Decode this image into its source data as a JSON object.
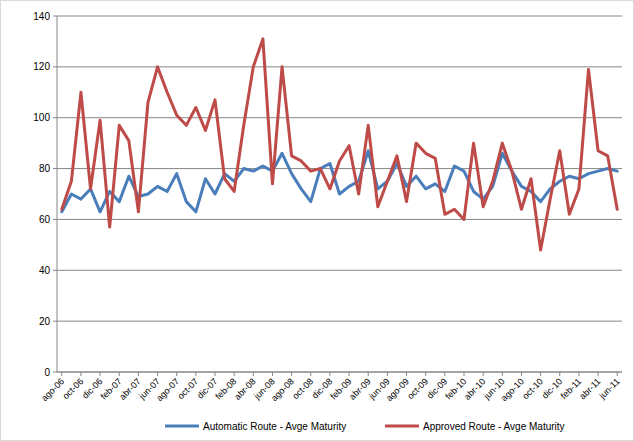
{
  "chart_data": {
    "type": "line",
    "categories": [
      "ago-06",
      null,
      "oct-06",
      null,
      "dic-06",
      null,
      "feb-07",
      null,
      "abr-07",
      null,
      "jun-07",
      null,
      "ago-07",
      null,
      "oct-07",
      null,
      "dic-07",
      null,
      "feb-08",
      null,
      "abr-08",
      null,
      "jun-08",
      null,
      "ago-08",
      null,
      "oct-08",
      null,
      "dic-08",
      null,
      "feb-09",
      null,
      "abr-09",
      null,
      "jun-09",
      null,
      "ago-09",
      null,
      "oct-09",
      null,
      "dic-09",
      null,
      "feb-10",
      null,
      "abr-10",
      null,
      "jun-10",
      null,
      "ago-10",
      null,
      "oct-10",
      null,
      "dic-10",
      null,
      "feb-11",
      null,
      "abr-11",
      null,
      "jun-11"
    ],
    "series": [
      {
        "name": "Automatic Route - Avge Maturity",
        "color": "#4a7ebb",
        "values": [
          63,
          70,
          68,
          72,
          63,
          71,
          67,
          77,
          69,
          70,
          73,
          71,
          78,
          67,
          63,
          76,
          70,
          78,
          75,
          80,
          79,
          81,
          79,
          86,
          78,
          72,
          67,
          80,
          82,
          70,
          73,
          75,
          87,
          72,
          75,
          82,
          73,
          77,
          72,
          74,
          71,
          81,
          79,
          71,
          68,
          73,
          86,
          79,
          73,
          71,
          67,
          72,
          75,
          77,
          76,
          78,
          79,
          80,
          79
        ]
      },
      {
        "name": "Approved Route - Avge Maturity",
        "color": "#be4b48",
        "values": [
          64,
          75,
          110,
          72,
          99,
          57,
          97,
          91,
          63,
          106,
          120,
          110,
          101,
          97,
          104,
          95,
          107,
          76,
          71,
          97,
          120,
          131,
          74,
          120,
          85,
          83,
          79,
          80,
          72,
          83,
          89,
          70,
          97,
          65,
          75,
          85,
          67,
          90,
          86,
          84,
          62,
          64,
          60,
          90,
          65,
          75,
          90,
          79,
          64,
          76,
          48,
          68,
          87,
          62,
          72,
          119,
          87,
          85,
          64
        ]
      }
    ],
    "ylim": [
      0,
      140
    ],
    "yticks": [
      0,
      20,
      40,
      60,
      80,
      100,
      120,
      140
    ],
    "grid": true,
    "legend": "bottom"
  }
}
